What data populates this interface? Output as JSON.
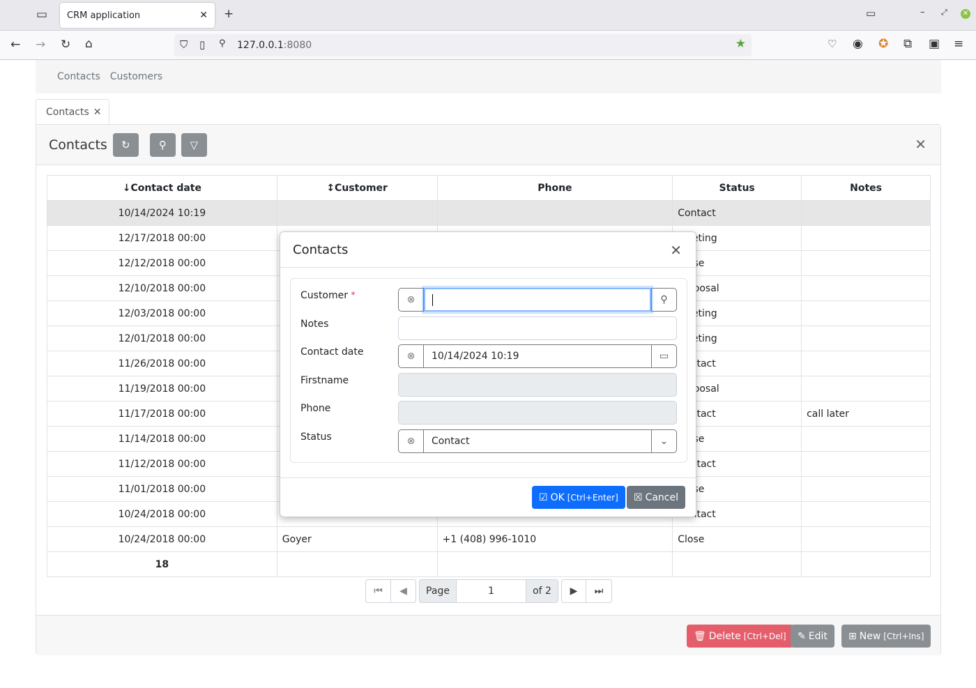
{
  "browser": {
    "tab_title": "CRM application",
    "url_host": "127.0.0.1",
    "url_port": ":8080"
  },
  "app_nav": {
    "items": [
      "Contacts",
      "Customers"
    ]
  },
  "page_tab": {
    "label": "Contacts"
  },
  "panel": {
    "title": "Contacts"
  },
  "table": {
    "columns": [
      "↓Contact date",
      "↕Customer",
      "Phone",
      "Status",
      "Notes"
    ],
    "rows": [
      [
        "10/14/2024 10:19",
        "",
        "",
        "Contact",
        ""
      ],
      [
        "12/17/2018 00:00",
        "",
        "",
        "Meeting",
        ""
      ],
      [
        "12/12/2018 00:00",
        "",
        "",
        "Close",
        ""
      ],
      [
        "12/10/2018 00:00",
        "",
        "",
        "Proposal",
        ""
      ],
      [
        "12/03/2018 00:00",
        "",
        "",
        "Meeting",
        ""
      ],
      [
        "12/01/2018 00:00",
        "",
        "",
        "Meeting",
        ""
      ],
      [
        "11/26/2018 00:00",
        "",
        "",
        "Contact",
        ""
      ],
      [
        "11/19/2018 00:00",
        "",
        "",
        "Proposal",
        ""
      ],
      [
        "11/17/2018 00:00",
        "",
        "",
        "Contact",
        "call later"
      ],
      [
        "11/14/2018 00:00",
        "",
        "",
        "Close",
        ""
      ],
      [
        "11/12/2018 00:00",
        "",
        "",
        "Contact",
        ""
      ],
      [
        "11/01/2018 00:00",
        "",
        "",
        "Close",
        ""
      ],
      [
        "10/24/2018 00:00",
        "",
        "",
        "Contact",
        ""
      ],
      [
        "10/24/2018 00:00",
        "Goyer",
        "+1 (408) 996-1010",
        "Close",
        ""
      ]
    ],
    "total": "18"
  },
  "pager": {
    "page_label": "Page",
    "page": "1",
    "of": "of 2"
  },
  "footer": {
    "delete": "Delete",
    "delete_key": "[Ctrl+Del]",
    "edit": "Edit",
    "new": "New",
    "new_key": "[Ctrl+Ins]"
  },
  "modal": {
    "title": "Contacts",
    "fields": {
      "customer": "Customer",
      "notes": "Notes",
      "contact_date": "Contact date",
      "firstname": "Firstname",
      "phone": "Phone",
      "status": "Status"
    },
    "required_mark": "*",
    "contact_date_value": "10/14/2024 10:19",
    "status_value": "Contact",
    "ok": "OK",
    "ok_key": "[Ctrl+Enter]",
    "cancel": "Cancel"
  },
  "colors": {
    "primary": "#0d6efd",
    "danger": "#e35d6a",
    "secondary": "#6c757d"
  }
}
